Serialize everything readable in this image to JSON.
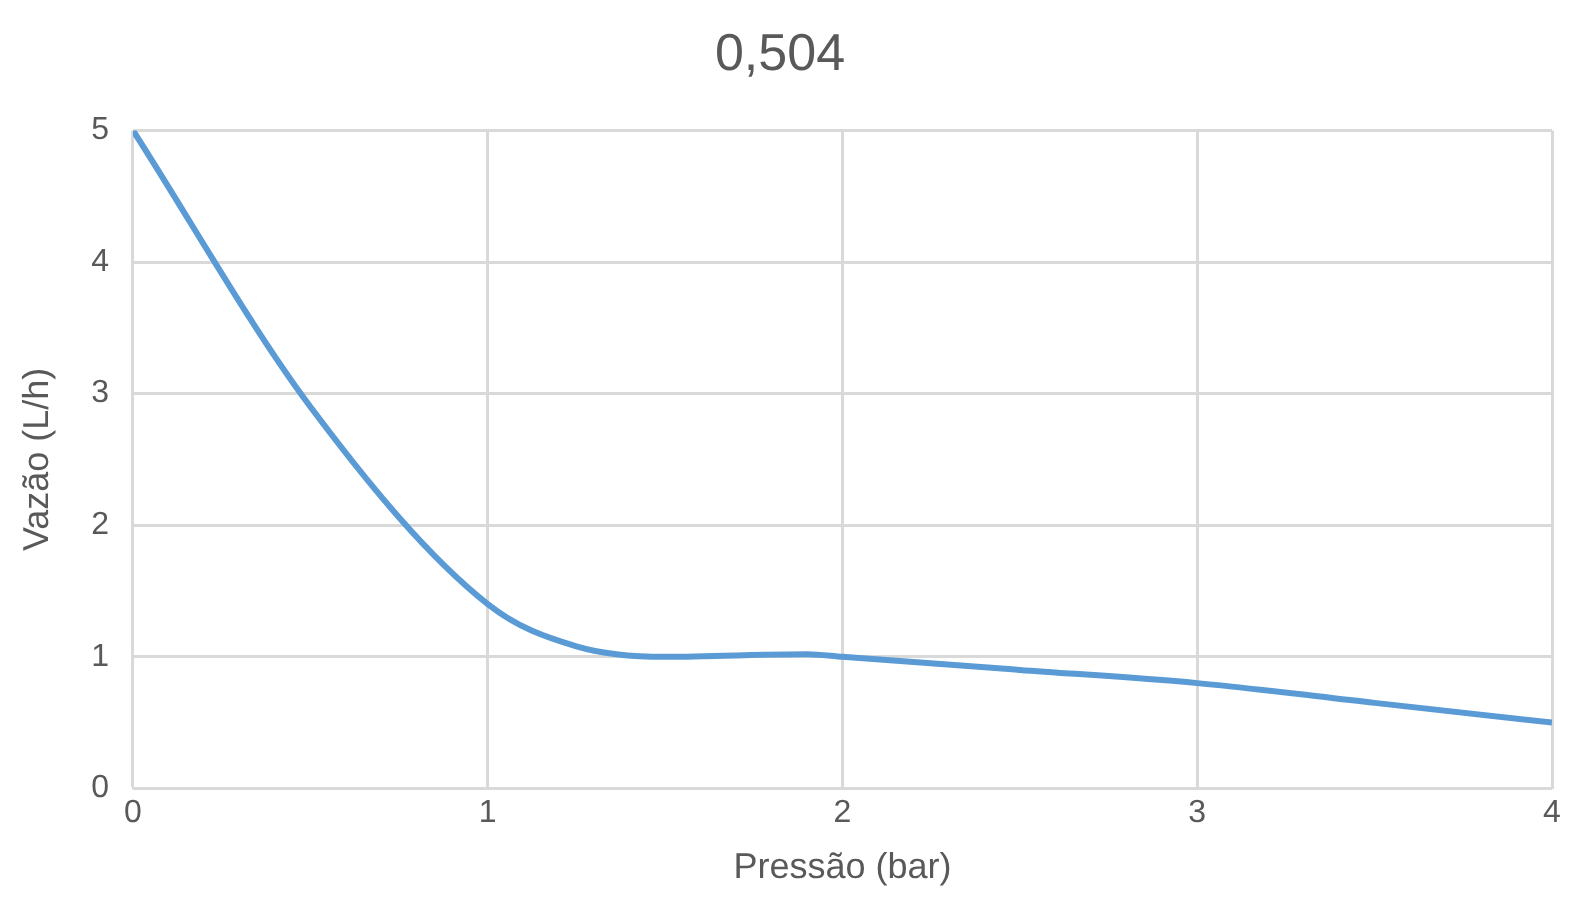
{
  "chart_data": {
    "type": "line",
    "title": "0,504",
    "xlabel": "Pressão (bar)",
    "ylabel": "Vazão (L/h)",
    "x": [
      0,
      0.5,
      1,
      1.25,
      1.5,
      1.9,
      2,
      2.5,
      3,
      3.5,
      4
    ],
    "series": [
      {
        "color": "#5b9bd5",
        "values": [
          5,
          2.9,
          1.4,
          1.08,
          1.0,
          1.02,
          1.0,
          0.9,
          0.8,
          0.65,
          0.5
        ]
      }
    ],
    "xlim": [
      0,
      4
    ],
    "xticks": [
      0,
      1,
      2,
      3,
      4
    ],
    "ylim": [
      0,
      5
    ],
    "yticks": [
      0,
      1,
      2,
      3,
      4,
      5
    ],
    "grid": true,
    "legend": false,
    "marker": "none",
    "line_style": "solid"
  }
}
